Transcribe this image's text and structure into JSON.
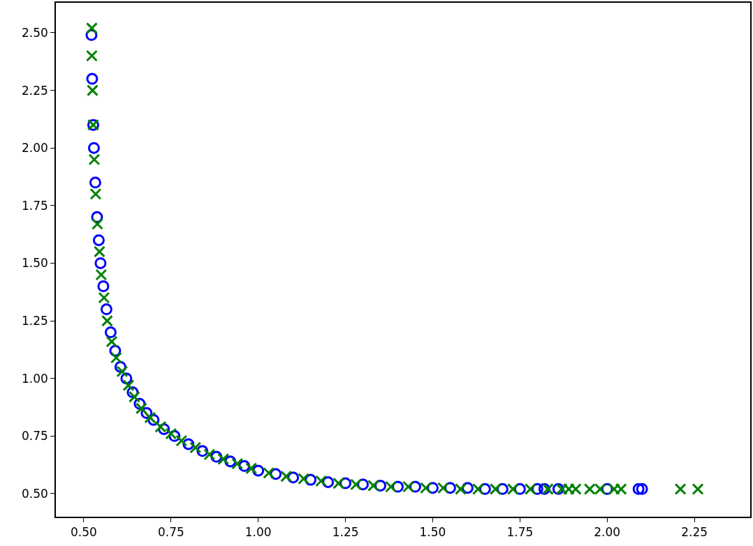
{
  "chart_data": {
    "type": "scatter",
    "xlim": [
      0.42,
      2.41
    ],
    "ylim": [
      0.4,
      2.63
    ],
    "xticks": [
      {
        "value": 0.5,
        "label": "0.50"
      },
      {
        "value": 0.75,
        "label": "0.75"
      },
      {
        "value": 1.0,
        "label": "1.00"
      },
      {
        "value": 1.25,
        "label": "1.25"
      },
      {
        "value": 1.5,
        "label": "1.50"
      },
      {
        "value": 1.75,
        "label": "1.75"
      },
      {
        "value": 2.0,
        "label": "2.00"
      },
      {
        "value": 2.25,
        "label": "2.25"
      }
    ],
    "yticks": [
      {
        "value": 0.5,
        "label": "0.50"
      },
      {
        "value": 0.75,
        "label": "0.75"
      },
      {
        "value": 1.0,
        "label": "1.00"
      },
      {
        "value": 1.25,
        "label": "1.25"
      },
      {
        "value": 1.5,
        "label": "1.50"
      },
      {
        "value": 1.75,
        "label": "1.75"
      },
      {
        "value": 2.0,
        "label": "2.00"
      },
      {
        "value": 2.25,
        "label": "2.25"
      },
      {
        "value": 2.5,
        "label": "2.50"
      }
    ],
    "series": [
      {
        "color": "#0000ff",
        "marker": "circle",
        "x": [
          0.522,
          0.524,
          0.527,
          0.529,
          0.533,
          0.538,
          0.543,
          0.548,
          0.556,
          0.565,
          0.577,
          0.59,
          0.605,
          0.622,
          0.64,
          0.66,
          0.68,
          0.7,
          0.73,
          0.76,
          0.8,
          0.84,
          0.88,
          0.92,
          0.96,
          1.0,
          1.05,
          1.1,
          1.15,
          1.2,
          1.25,
          1.3,
          1.35,
          1.4,
          1.45,
          1.5,
          1.55,
          1.6,
          1.65,
          1.7,
          1.75,
          1.8,
          1.82,
          1.86,
          2.0,
          2.09,
          2.1
        ],
        "values": [
          2.49,
          2.3,
          2.1,
          2.0,
          1.85,
          1.7,
          1.6,
          1.5,
          1.4,
          1.3,
          1.2,
          1.12,
          1.05,
          1.0,
          0.94,
          0.89,
          0.85,
          0.82,
          0.78,
          0.75,
          0.715,
          0.685,
          0.66,
          0.64,
          0.62,
          0.6,
          0.585,
          0.57,
          0.56,
          0.55,
          0.545,
          0.54,
          0.535,
          0.53,
          0.53,
          0.525,
          0.525,
          0.525,
          0.52,
          0.52,
          0.52,
          0.52,
          0.52,
          0.52,
          0.52,
          0.52,
          0.52
        ]
      },
      {
        "color": "#008000",
        "marker": "cross",
        "x": [
          0.523,
          0.523,
          0.525,
          0.527,
          0.53,
          0.534,
          0.539,
          0.545,
          0.55,
          0.558,
          0.567,
          0.58,
          0.593,
          0.61,
          0.628,
          0.645,
          0.665,
          0.69,
          0.72,
          0.75,
          0.78,
          0.82,
          0.86,
          0.9,
          0.94,
          0.98,
          1.03,
          1.08,
          1.13,
          1.18,
          1.23,
          1.28,
          1.33,
          1.38,
          1.43,
          1.48,
          1.53,
          1.58,
          1.63,
          1.68,
          1.73,
          1.78,
          1.83,
          1.87,
          1.89,
          1.91,
          1.95,
          1.98,
          2.02,
          2.04,
          2.21,
          2.26
        ],
        "values": [
          2.52,
          2.4,
          2.25,
          2.1,
          1.95,
          1.8,
          1.67,
          1.55,
          1.45,
          1.35,
          1.25,
          1.16,
          1.09,
          1.03,
          0.97,
          0.92,
          0.87,
          0.83,
          0.79,
          0.76,
          0.73,
          0.7,
          0.67,
          0.65,
          0.63,
          0.61,
          0.59,
          0.575,
          0.565,
          0.555,
          0.545,
          0.54,
          0.535,
          0.53,
          0.53,
          0.525,
          0.525,
          0.52,
          0.52,
          0.52,
          0.52,
          0.52,
          0.52,
          0.52,
          0.52,
          0.52,
          0.52,
          0.52,
          0.52,
          0.52,
          0.52,
          0.52
        ]
      }
    ]
  }
}
